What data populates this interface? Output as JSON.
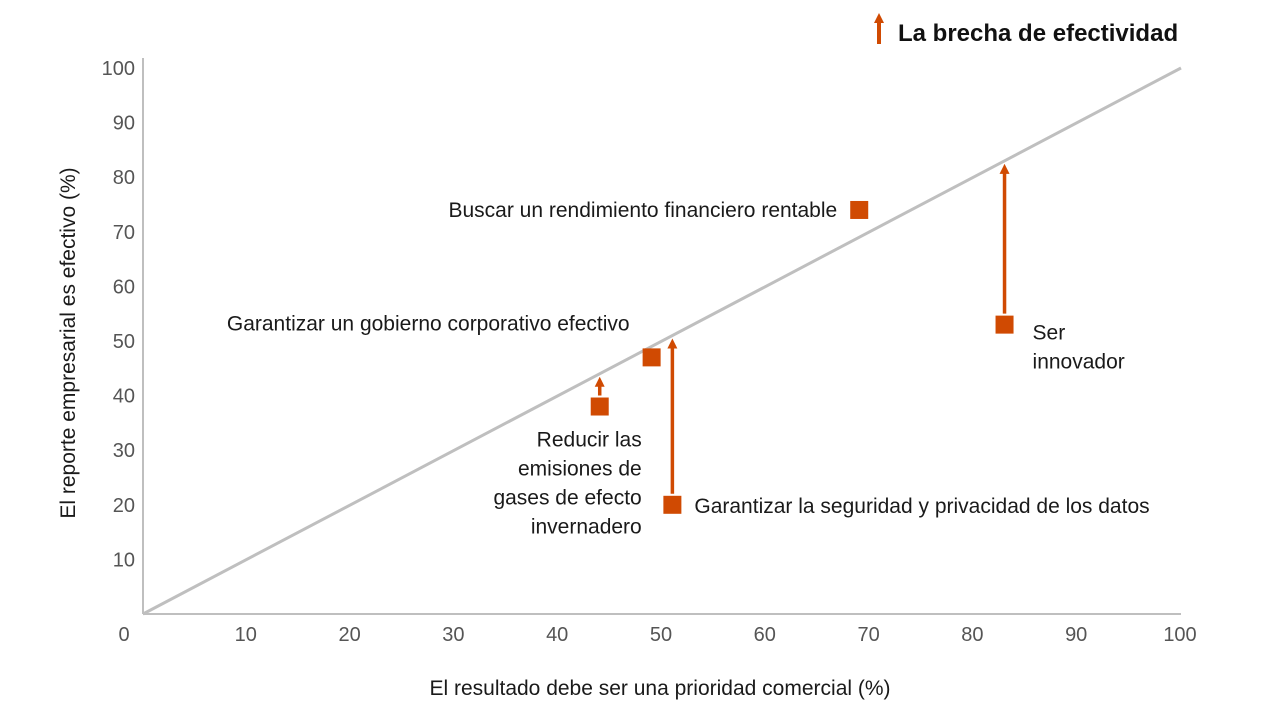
{
  "chart_data": {
    "type": "scatter",
    "xlabel": "El resultado debe ser una prioridad comercial (%)",
    "ylabel": "El reporte empresarial es efectivo (%)",
    "xlim": [
      0,
      100
    ],
    "ylim": [
      0,
      100
    ],
    "x_ticks": [
      "0",
      "10",
      "20",
      "30",
      "40",
      "50",
      "60",
      "70",
      "80",
      "90",
      "100"
    ],
    "y_ticks": [
      "10",
      "20",
      "30",
      "40",
      "50",
      "60",
      "70",
      "80",
      "90",
      "100"
    ],
    "grid": false,
    "reference_line": {
      "from": [
        0,
        0
      ],
      "to": [
        100,
        100
      ]
    },
    "legend": {
      "label": "La brecha de efectividad",
      "placement": "top-right",
      "symbol": "up-arrow"
    },
    "colors": {
      "marker": "#d04a02",
      "reference_line": "#bfbfbf",
      "axis": "#bfbfbf"
    },
    "points": [
      {
        "label_lines": [
          "Buscar un rendimiento financiero rentable"
        ],
        "x": 69,
        "y": 74,
        "gap_arrow": false,
        "label_side": "left"
      },
      {
        "label_lines": [
          "Garantizar un gobierno corporativo efectivo"
        ],
        "x": 49,
        "y": 47,
        "gap_arrow": false,
        "label_side": "above-left"
      },
      {
        "label_lines": [
          "Reducir las",
          "emisiones de",
          "gases de efecto",
          "invernadero"
        ],
        "x": 44,
        "y": 38,
        "gap_arrow": true,
        "label_side": "below-left"
      },
      {
        "label_lines": [
          "Garantizar la seguridad y privacidad de los datos"
        ],
        "x": 51,
        "y": 20,
        "gap_arrow": true,
        "label_side": "right"
      },
      {
        "label_lines": [
          "Ser",
          "innovador"
        ],
        "x": 83,
        "y": 53,
        "gap_arrow": true,
        "label_side": "right-below"
      }
    ]
  }
}
